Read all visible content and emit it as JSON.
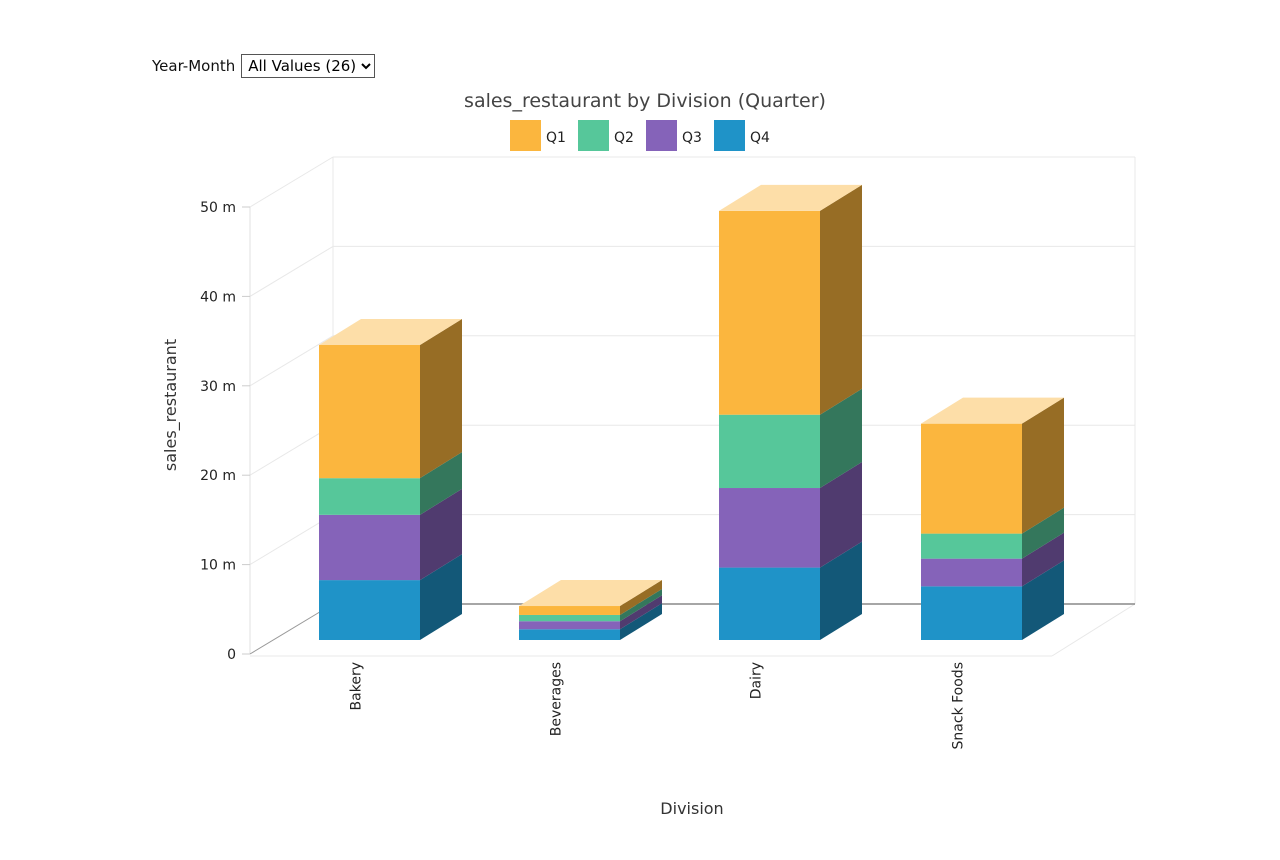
{
  "filter": {
    "label": "Year-Month",
    "selected": "All Values (26)"
  },
  "chart_data": {
    "type": "bar",
    "stacked": true,
    "three_d": true,
    "title": "sales_restaurant by Division (Quarter)",
    "xlabel": "Division",
    "ylabel": "sales_restaurant",
    "ylim": [
      0,
      50
    ],
    "yticks": [
      0,
      10,
      20,
      30,
      40,
      50
    ],
    "ytick_labels": [
      "0",
      "10 m",
      "20 m",
      "30 m",
      "40 m",
      "50 m"
    ],
    "grid": true,
    "legend": "top-center",
    "categories": [
      "Bakery",
      "Beverages",
      "Dairy",
      "Snack Foods"
    ],
    "series": [
      {
        "name": "Q4",
        "color": "#1f93c8",
        "values": [
          6.7,
          1.2,
          8.1,
          6.0
        ]
      },
      {
        "name": "Q3",
        "color": "#8563b9",
        "values": [
          7.3,
          0.9,
          8.9,
          3.1
        ]
      },
      {
        "name": "Q2",
        "color": "#56c79a",
        "values": [
          4.1,
          0.7,
          8.2,
          2.8
        ]
      },
      {
        "name": "Q1",
        "color": "#fbb63e",
        "values": [
          14.9,
          1.0,
          22.8,
          12.3
        ]
      }
    ],
    "legend_order": [
      "Q1",
      "Q2",
      "Q3",
      "Q4"
    ]
  }
}
